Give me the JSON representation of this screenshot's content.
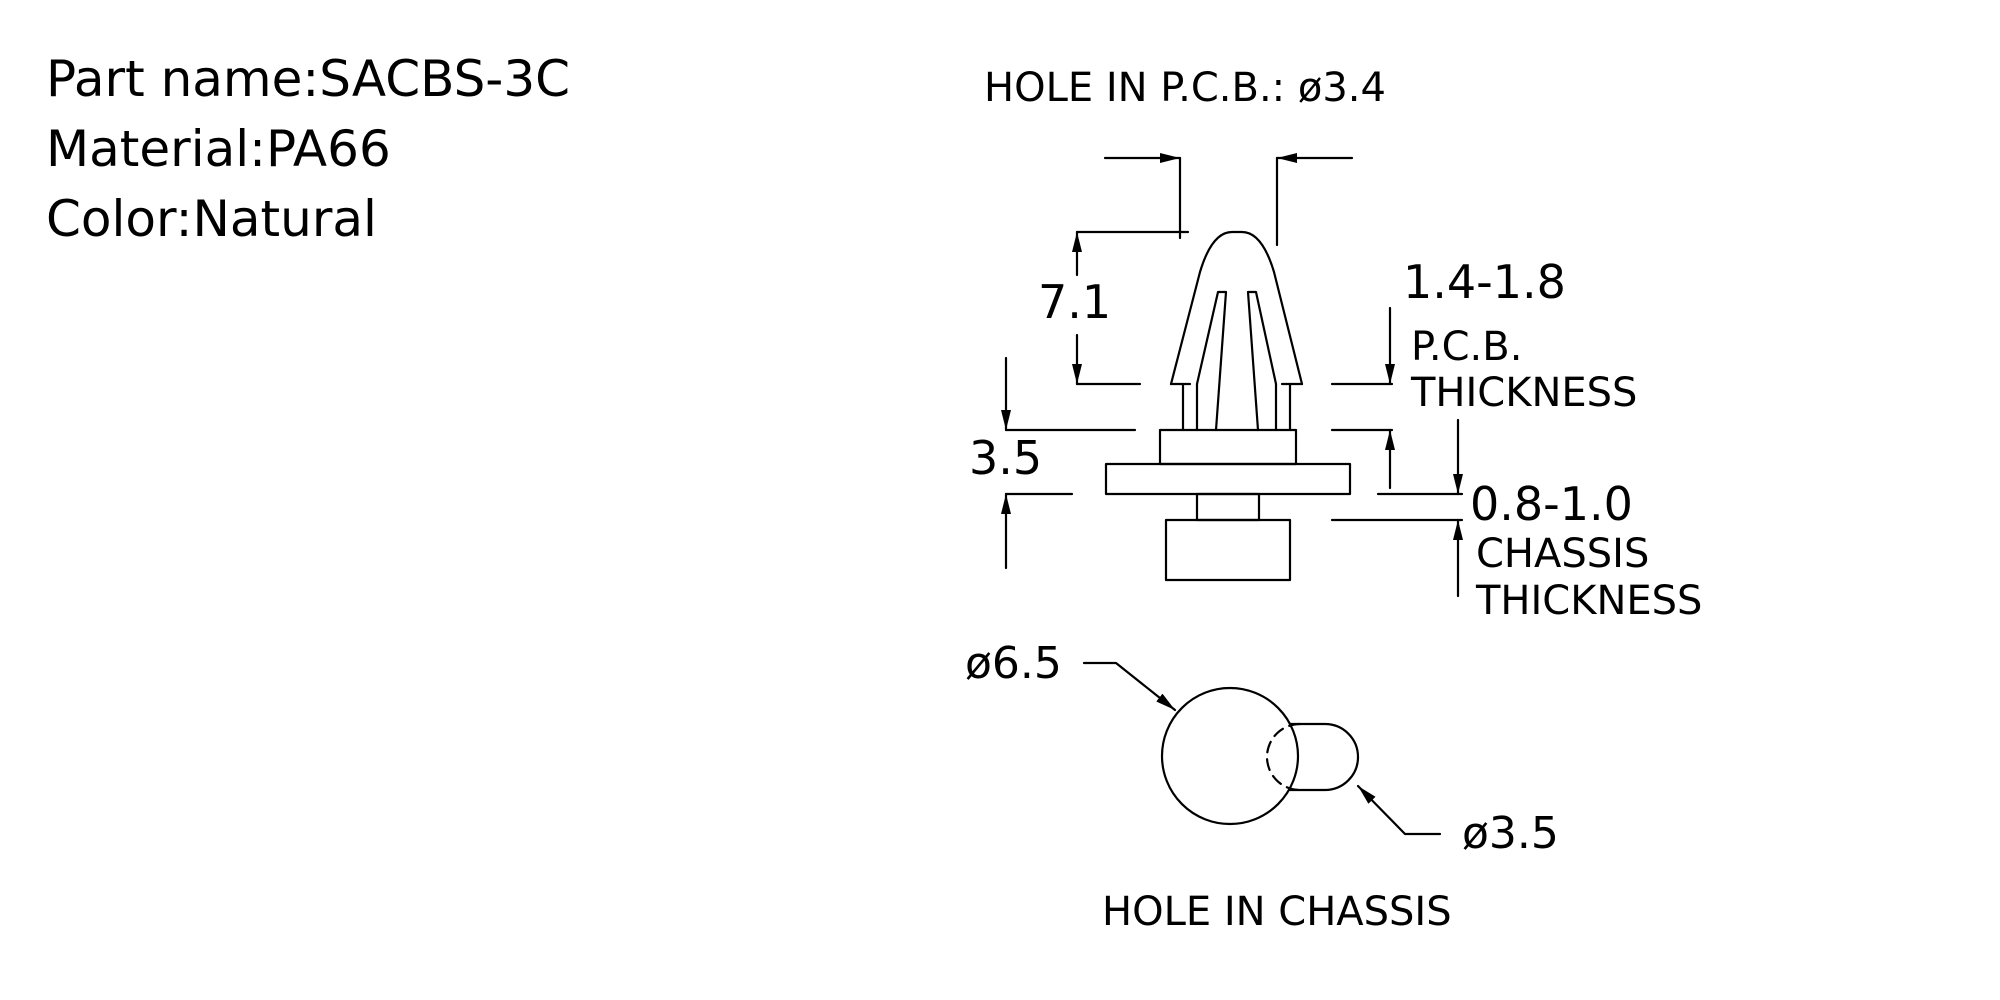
{
  "part_info": {
    "part_name": "Part name:SACBS-3C",
    "material": "Material:PA66",
    "color": "Color:Natural"
  },
  "drawing": {
    "pcb_hole_label": "HOLE IN P.C.B.: ø3.4",
    "dim_height": "7.1",
    "pcb_thickness_value": "1.4-1.8",
    "pcb_thickness_label_1": "P.C.B.",
    "pcb_thickness_label_2": "THICKNESS",
    "dim_base": "3.5",
    "chassis_thickness_value": "0.8-1.0",
    "chassis_thickness_label_1": "CHASSIS",
    "chassis_thickness_label_2": "THICKNESS",
    "dia_large": "ø6.5",
    "dia_small": "ø3.5",
    "chassis_hole_label": "HOLE IN CHASSIS"
  },
  "line_color": "#000000",
  "background_color": "#ffffff"
}
